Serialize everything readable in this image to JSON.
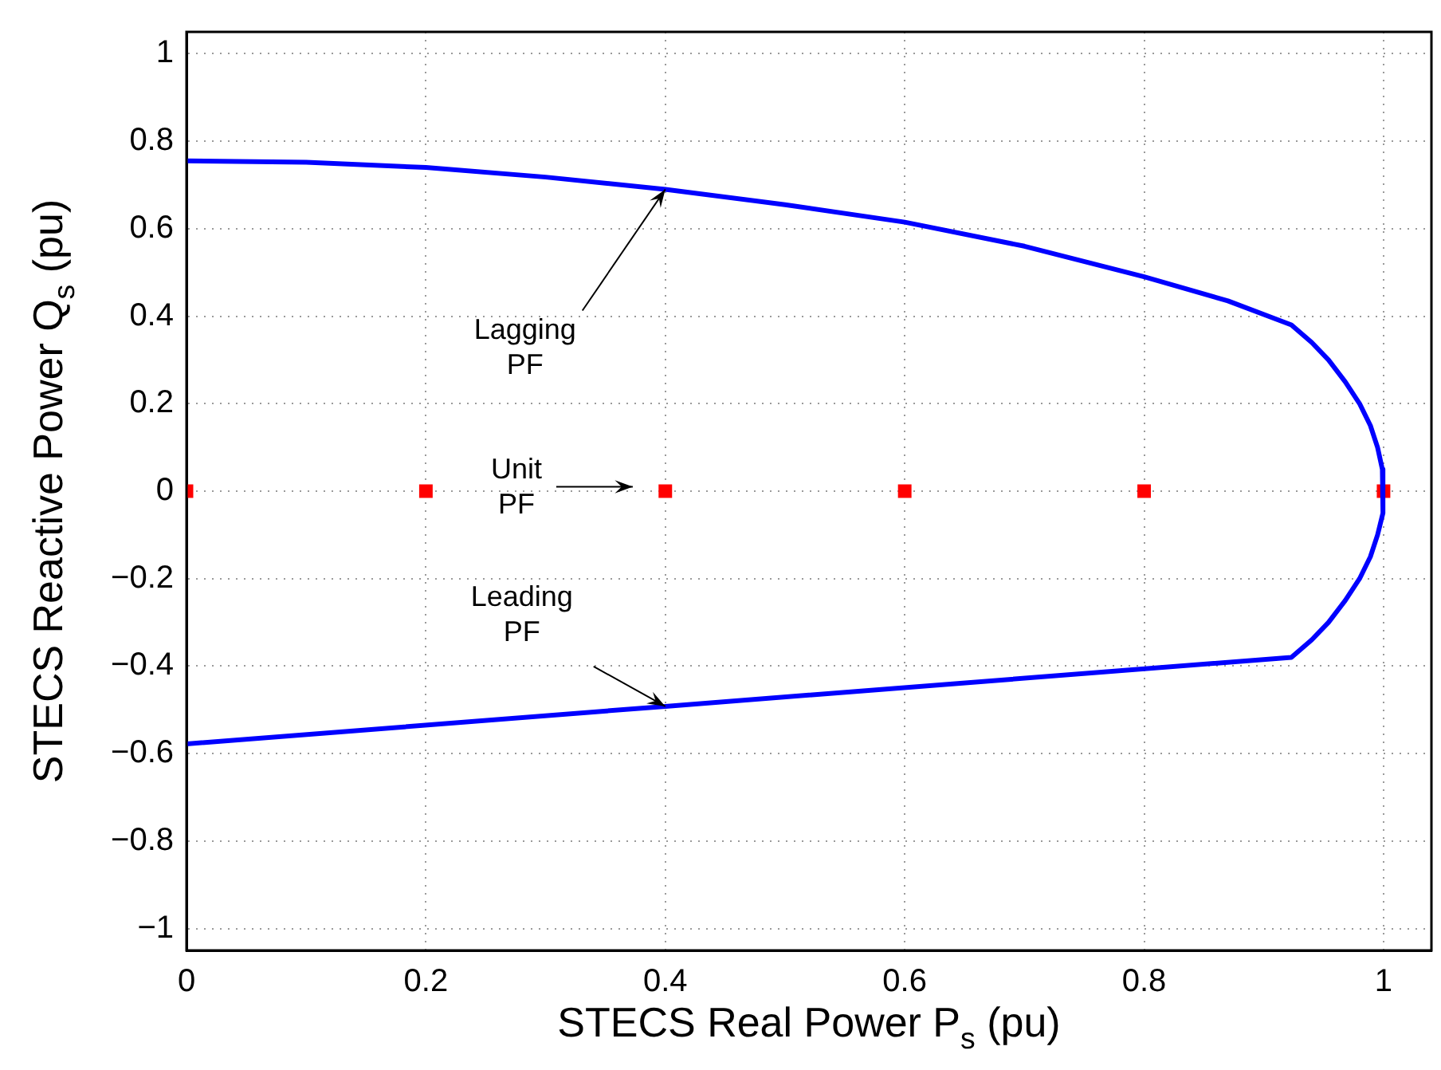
{
  "chart_data": {
    "type": "line",
    "xlabel": "STECS Real Power P$_{s}$ (pu)",
    "ylabel": "STECS Reactive Power Q$_{s}$ (pu)",
    "series": [
      {
        "type": "line",
        "color": "#0000ff",
        "marker": "none",
        "x": [
          0,
          0.1,
          0.2,
          0.3,
          0.4,
          0.5,
          0.6,
          0.7,
          0.8,
          0.87,
          0.923,
          0.94,
          0.954,
          0.968,
          0.98,
          0.989,
          0.995,
          0.999,
          1,
          0.999,
          0.995,
          0.989,
          0.98,
          0.968,
          0.954,
          0.94,
          0.923,
          0.4,
          0
        ],
        "values": [
          0.755,
          0.752,
          0.74,
          0.718,
          0.69,
          0.655,
          0.615,
          0.56,
          0.49,
          0.435,
          0.38,
          0.34,
          0.3,
          0.25,
          0.2,
          0.15,
          0.1,
          0.05,
          0,
          -0.05,
          -0.1,
          -0.15,
          -0.2,
          -0.25,
          -0.3,
          -0.34,
          -0.38,
          -0.492,
          -0.578
        ]
      },
      {
        "type": "scatter",
        "color": "#ff0000",
        "marker": "square",
        "x": [
          0,
          0.2,
          0.4,
          0.6,
          0.8,
          1
        ],
        "values": [
          0,
          0,
          0,
          0,
          0,
          0
        ]
      }
    ],
    "annotations": [
      {
        "text": "Lagging PF",
        "x": 0.4,
        "y": 0.69
      },
      "Unit PF",
      {
        "text": "Leading PF",
        "x": 0.4,
        "y": -0.492
      }
    ],
    "xlim": [
      0,
      1.04
    ],
    "ylim": [
      -1.05,
      1.05
    ],
    "xticks": [
      0,
      0.2,
      0.4,
      0.6,
      0.8,
      1
    ],
    "yticks": [
      {
        "value": -1,
        "label": "−1"
      },
      {
        "value": -0.8,
        "label": "−0.8"
      },
      {
        "value": -0.6,
        "label": "−0.6"
      },
      {
        "value": -0.4,
        "label": "−0.4"
      },
      {
        "value": -0.2,
        "label": "−0.2"
      },
      0,
      0.2,
      0.4,
      0.6,
      0.8,
      1
    ],
    "grid": true,
    "legend": false
  }
}
